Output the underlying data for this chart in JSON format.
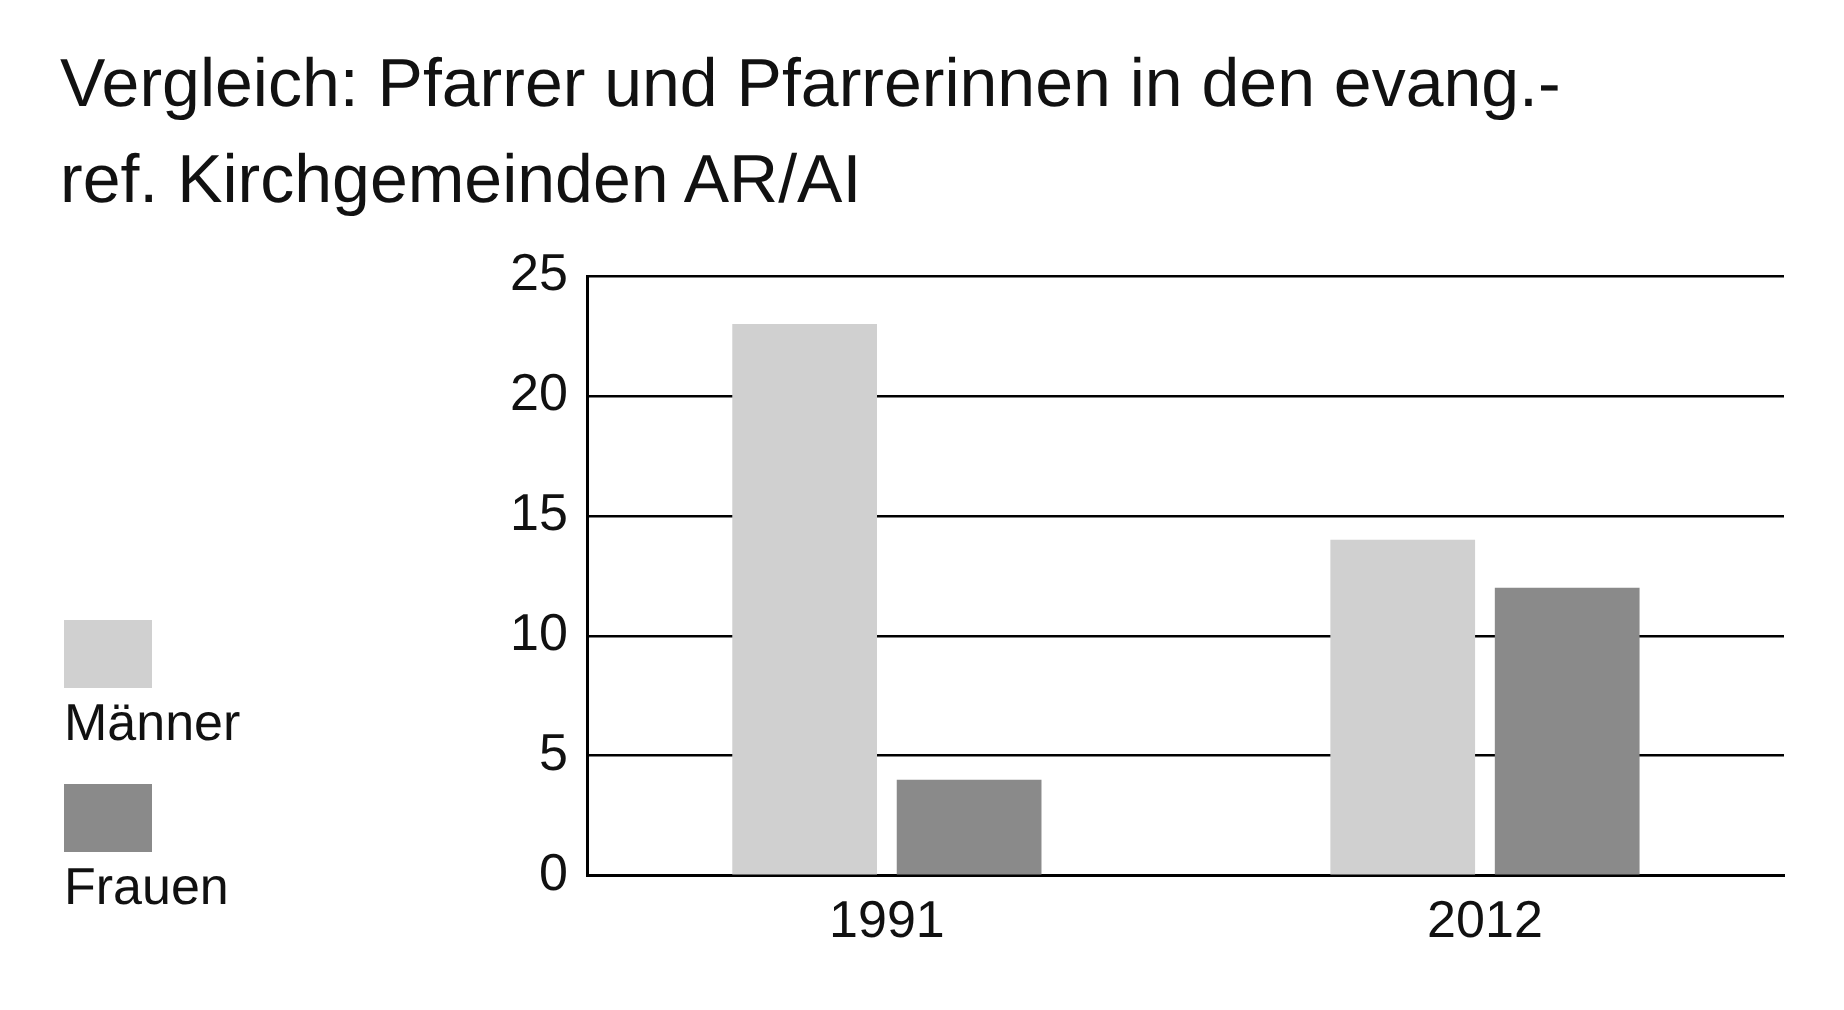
{
  "chart_data": {
    "type": "bar",
    "title": "Vergleich: Pfarrer und Pfarrerinnen in den evang.-ref. Kirchgemeinden AR/AI",
    "categories": [
      "1991",
      "2012"
    ],
    "series": [
      {
        "name": "Männer",
        "color": "#d0d0d0",
        "values": [
          23,
          14
        ]
      },
      {
        "name": "Frauen",
        "color": "#8a8a8a",
        "values": [
          4,
          12
        ]
      }
    ],
    "ylim": [
      0,
      25
    ],
    "yticks": [
      0,
      5,
      10,
      15,
      20,
      25
    ],
    "grid": "y",
    "legend": "left"
  }
}
